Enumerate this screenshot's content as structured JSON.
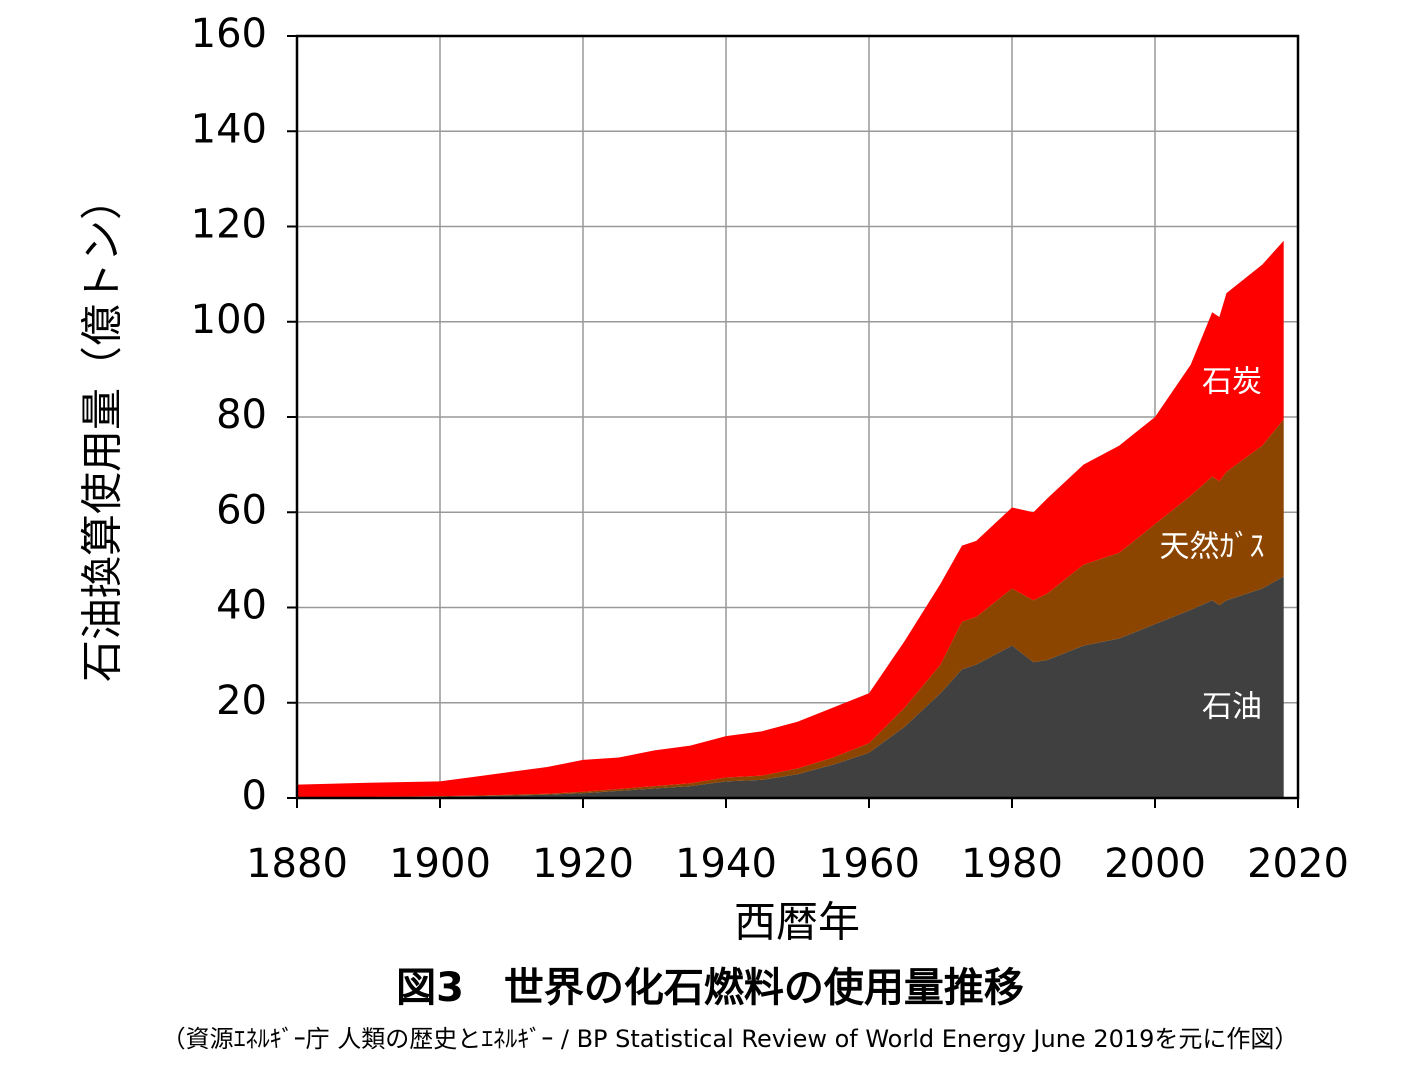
{
  "chart_data": {
    "type": "stacked-area",
    "title": "図3　世界の化石燃料の使用量推移",
    "subtitle": "（資源ｴﾈﾙｷﾞｰ庁 人類の歴史とｴﾈﾙｷﾞｰ / BP Statistical Review of World Energy June 2019を元に作図）",
    "x_label": "西暦年",
    "y_label": "石油換算使用量（億トン）",
    "x": [
      1880,
      1890,
      1900,
      1905,
      1910,
      1915,
      1920,
      1925,
      1930,
      1935,
      1940,
      1945,
      1950,
      1955,
      1960,
      1965,
      1970,
      1973,
      1975,
      1980,
      1983,
      1985,
      1990,
      1995,
      2000,
      2005,
      2008,
      2009,
      2010,
      2015,
      2018
    ],
    "series": [
      {
        "name": "石油",
        "color": "#404040",
        "values": [
          0.1,
          0.2,
          0.3,
          0.4,
          0.5,
          0.7,
          1,
          1.5,
          2,
          2.5,
          3.5,
          3.8,
          5,
          7,
          9.5,
          15,
          22,
          27,
          28,
          32,
          28.5,
          29,
          32,
          33.5,
          36.5,
          39.5,
          41.5,
          40.5,
          41.5,
          44,
          46.5
        ]
      },
      {
        "name": "天然ｶﾞｽ",
        "color": "#8b4500",
        "values": [
          0,
          0,
          0.1,
          0.1,
          0.2,
          0.2,
          0.3,
          0.4,
          0.5,
          0.6,
          0.8,
          0.9,
          1.2,
          1.5,
          2,
          4,
          6,
          10,
          10,
          12,
          13,
          14,
          17,
          18,
          21,
          24,
          26,
          26,
          27,
          30,
          33
        ]
      },
      {
        "name": "石炭",
        "color": "#ff0000",
        "values": [
          2.7,
          3.0,
          3.1,
          4.0,
          4.8,
          5.6,
          6.7,
          6.6,
          7.5,
          7.9,
          8.7,
          9.3,
          9.8,
          10.5,
          10.5,
          14,
          17,
          16,
          16,
          17,
          18.5,
          20,
          21,
          22.5,
          22.5,
          27.5,
          34.5,
          34.5,
          37.5,
          38,
          37.5
        ]
      }
    ],
    "xlim": [
      1880,
      2020
    ],
    "xticks": [
      1880,
      1900,
      1920,
      1940,
      1960,
      1980,
      2000,
      2020
    ],
    "ylim": [
      0,
      160
    ],
    "yticks": [
      0,
      20,
      40,
      60,
      80,
      100,
      120,
      140,
      160
    ],
    "grid": true
  }
}
